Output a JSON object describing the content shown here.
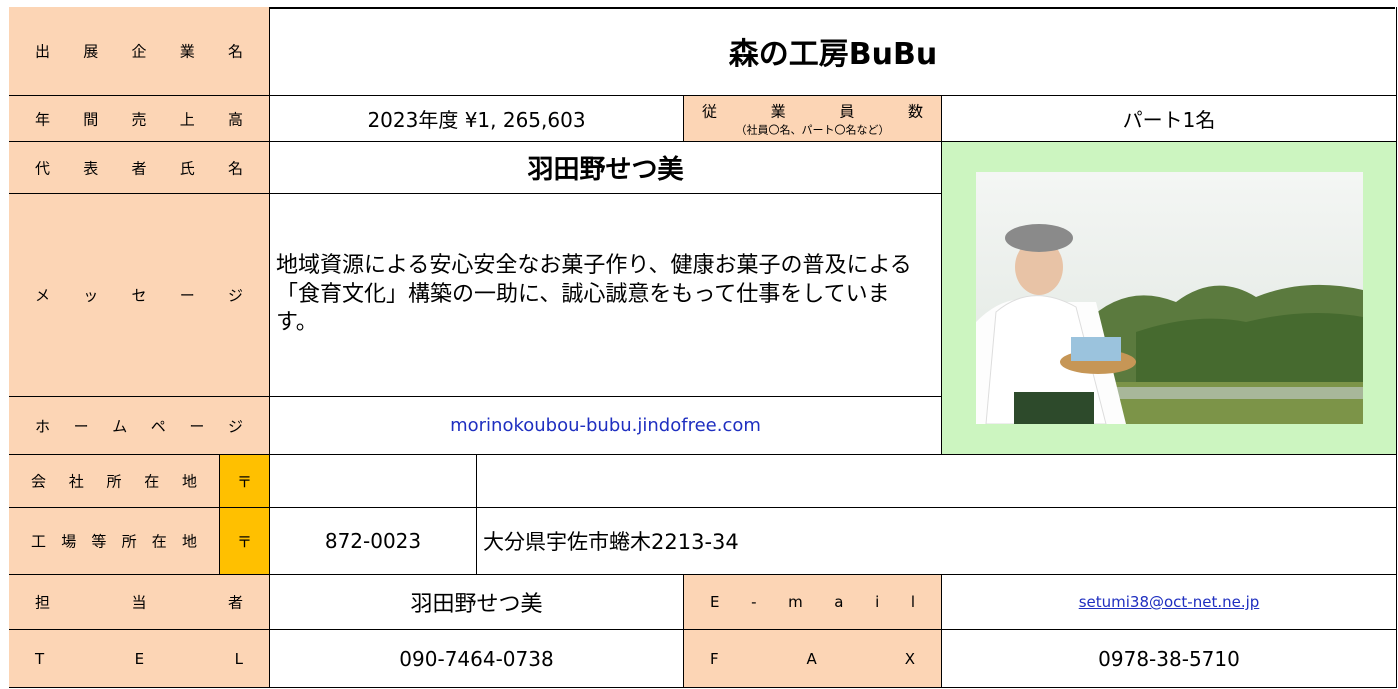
{
  "company": {
    "label": "出 展 企 業 名",
    "value": "森の工房BuBu"
  },
  "sales": {
    "label": "年 間 売 上 高",
    "value": "2023年度 ¥1, 265,603"
  },
  "employees": {
    "label": "従 業 員 数",
    "note": "（社員〇名、パート〇名など）",
    "value": "パート1名"
  },
  "representative": {
    "label": "代 表 者 氏 名",
    "value": "羽田野せつ美"
  },
  "message": {
    "label": "メ ッ セ ー ジ",
    "value": "地域資源による安心安全なお菓子作り、健康お菓子の普及による「食育文化」構築の一助に、誠心誠意をもって仕事をしています。"
  },
  "homepage": {
    "label": "ホ ー ム ペ ー ジ",
    "value": "morinokoubou-bubu.jindofree.com"
  },
  "office": {
    "label": "会 社 所 在 地",
    "postal_mark": "〒"
  },
  "factory": {
    "label": "工 場 等 所 在 地",
    "postal_mark": "〒",
    "postal_code": "872-0023",
    "address": "大分県宇佐市蜷木2213-34"
  },
  "contact": {
    "label": "担 当 者",
    "value": "羽田野せつ美"
  },
  "email": {
    "label": "E - m a i l",
    "value": "setumi38@oct-net.ne.jp"
  },
  "tel": {
    "label": "T E L",
    "value": "090-7464-0738"
  },
  "fax": {
    "label": "F A X",
    "value": "0978-38-5710"
  }
}
